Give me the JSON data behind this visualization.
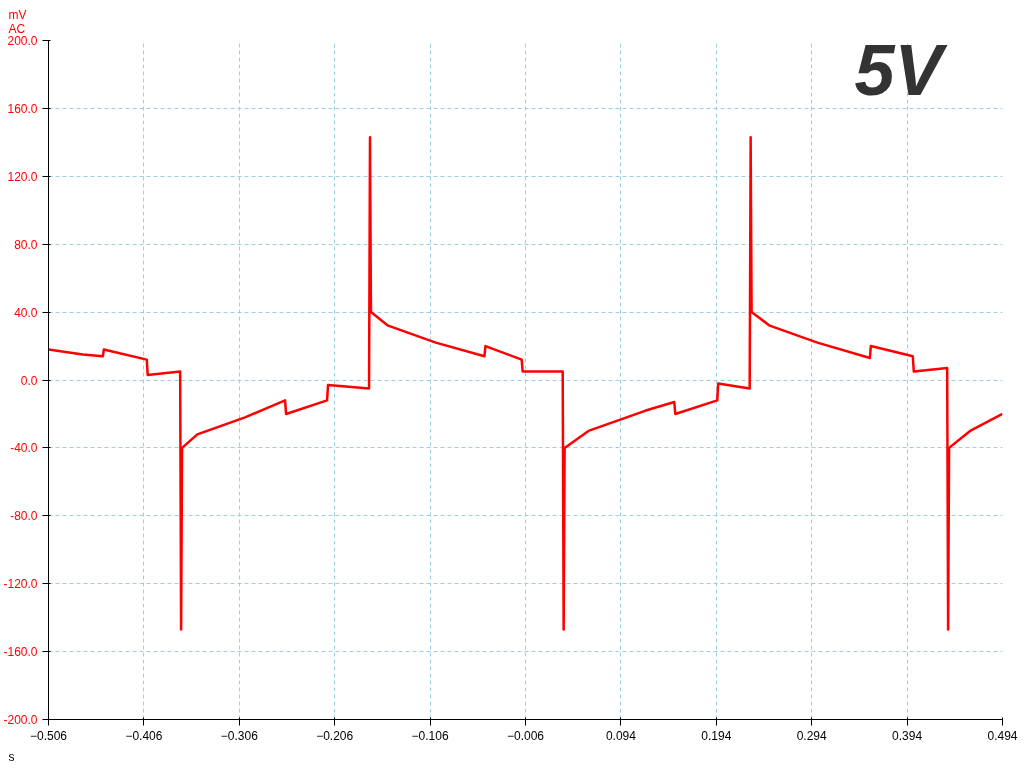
{
  "chart_data": {
    "type": "line",
    "xlabel": "s",
    "ylabel": "mV\nAC",
    "annotations": [
      "5V"
    ],
    "x": [
      -0.506,
      -0.47,
      -0.449,
      -0.448,
      -0.403,
      -0.402,
      -0.368,
      -0.367,
      -0.366,
      -0.35,
      -0.3,
      -0.258,
      -0.257,
      -0.214,
      -0.213,
      -0.17,
      -0.169,
      -0.168,
      -0.15,
      -0.1,
      -0.049,
      -0.048,
      -0.01,
      -0.009,
      0.033,
      0.034,
      0.035,
      0.06,
      0.12,
      0.15,
      0.151,
      0.195,
      0.196,
      0.229,
      0.23,
      0.231,
      0.25,
      0.3,
      0.355,
      0.356,
      0.4,
      0.401,
      0.436,
      0.437,
      0.438,
      0.46,
      0.494
    ],
    "series": [
      {
        "color": "#ff0000",
        "values": [
          18,
          15,
          14,
          18,
          12,
          3,
          5,
          -147,
          -40,
          -32,
          -22,
          -12,
          -20,
          -12,
          -3,
          -5,
          143,
          40,
          32,
          22,
          14,
          20,
          12,
          5,
          5,
          -147,
          -40,
          -30,
          -18,
          -13,
          -20,
          -12,
          -2,
          -5,
          143,
          40,
          32,
          22,
          13,
          20,
          14,
          5,
          7,
          -147,
          -40,
          -30,
          -20
        ]
      }
    ],
    "xlim": [
      -0.506,
      0.494
    ],
    "ylim": [
      -200,
      200
    ],
    "xticks": [
      -0.506,
      -0.406,
      -0.306,
      -0.206,
      -0.106,
      -0.006,
      0.094,
      0.194,
      0.294,
      0.394,
      0.494
    ],
    "yticks": [
      {
        "value": -200,
        "label": "-200.0"
      },
      {
        "value": -160,
        "label": "-160.0"
      },
      {
        "value": -120,
        "label": "-120.0"
      },
      {
        "value": -80,
        "label": "-80.0"
      },
      {
        "value": -40,
        "label": "-40.0"
      },
      {
        "value": 0,
        "label": "0.0"
      },
      {
        "value": 40,
        "label": "40.0"
      },
      {
        "value": 80,
        "label": "80.0"
      },
      {
        "value": 120,
        "label": "120.0"
      },
      {
        "value": 160,
        "label": "160.0"
      },
      {
        "value": 200,
        "label": "200.0"
      }
    ],
    "grid": true,
    "line_style": "solid"
  }
}
